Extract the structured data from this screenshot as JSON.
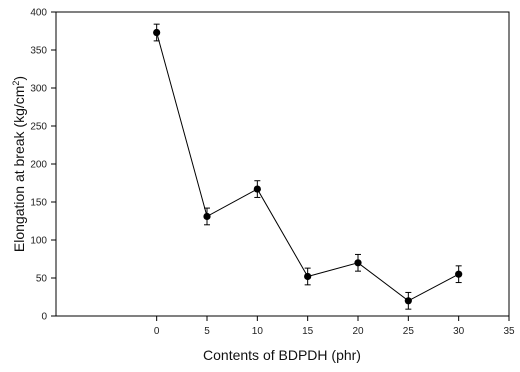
{
  "chart_data": {
    "type": "line",
    "xlabel": "Contents of BDPDH  (phr)",
    "ylabel_main": "Elongation at break (kg/cm",
    "ylabel_sup": "2",
    "ylabel_close": ")",
    "xlim": [
      -10,
      35
    ],
    "ylim": [
      0,
      400
    ],
    "x_ticks": [
      0,
      5,
      10,
      15,
      20,
      25,
      30,
      35
    ],
    "y_ticks": [
      0,
      50,
      100,
      150,
      200,
      250,
      300,
      350,
      400
    ],
    "grid": false,
    "series": [
      {
        "x": [
          0,
          5,
          10,
          15,
          20,
          25,
          30
        ],
        "y": [
          373,
          131,
          167,
          52,
          70,
          20,
          55
        ],
        "error": [
          11,
          11,
          11,
          11,
          11,
          11,
          11
        ],
        "marker": "circle",
        "color": "#000000"
      }
    ]
  }
}
